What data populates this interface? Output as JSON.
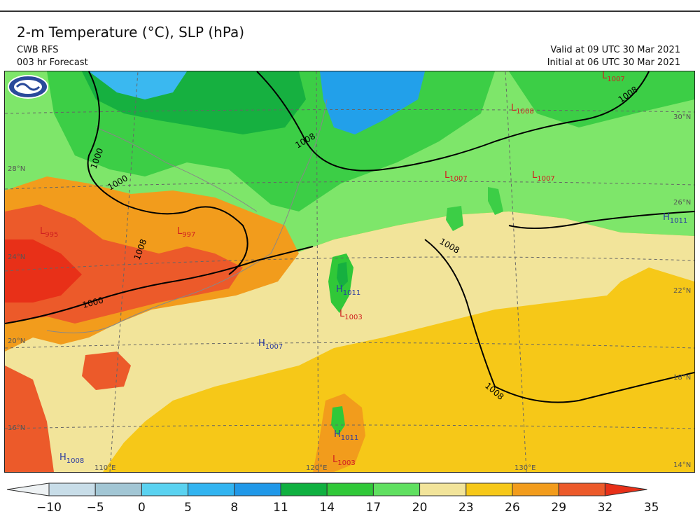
{
  "header": {
    "title": "2-m Temperature (°C), SLP (hPa)",
    "model": "CWB RFS",
    "forecast": "003 hr Forecast",
    "valid": "Valid at 09 UTC 30 Mar 2021",
    "initial": "Initial at 06 UTC 30 Mar 2021"
  },
  "colorbar": {
    "ticks": [
      "−10",
      "−5",
      "0",
      "5",
      "8",
      "11",
      "14",
      "17",
      "20",
      "23",
      "26",
      "29",
      "32",
      "35"
    ],
    "colors": [
      "#eef2f4",
      "#c8dde8",
      "#a2c6d4",
      "#5ad2f0",
      "#32b4f0",
      "#2098e8",
      "#10b040",
      "#30c838",
      "#60e060",
      "#f2e49a",
      "#f6c818",
      "#f29c1c",
      "#ec5a2a",
      "#e83018"
    ]
  },
  "isobars": {
    "labels": [
      "1000",
      "1000",
      "1008",
      "1008",
      "1008",
      "1008",
      "1008",
      "1000"
    ]
  },
  "pressure_centers": [
    {
      "type": "L",
      "value": "1007",
      "color": "#d02020"
    },
    {
      "type": "L",
      "value": "1008",
      "color": "#d02020"
    },
    {
      "type": "L",
      "value": "1007",
      "color": "#d02020"
    },
    {
      "type": "L",
      "value": "1007",
      "color": "#d02020"
    },
    {
      "type": "H",
      "value": "1011",
      "color": "#2a3aa0"
    },
    {
      "type": "L",
      "value": "997",
      "color": "#d02020"
    },
    {
      "type": "L",
      "value": "995",
      "color": "#d02020"
    },
    {
      "type": "H",
      "value": "1011",
      "color": "#2a3aa0"
    },
    {
      "type": "L",
      "value": "1003",
      "color": "#d02020"
    },
    {
      "type": "H",
      "value": "1007",
      "color": "#2a3aa0"
    },
    {
      "type": "H",
      "value": "1011",
      "color": "#2a3aa0"
    },
    {
      "type": "L",
      "value": "1003",
      "color": "#d02020"
    },
    {
      "type": "H",
      "value": "1008",
      "color": "#2a3aa0"
    }
  ],
  "geo_labels": [
    "30°N",
    "28°N",
    "26°N",
    "24°N",
    "22°N",
    "20°N",
    "18°N",
    "16°N",
    "14°N",
    "110°E",
    "120°E",
    "130°E"
  ]
}
